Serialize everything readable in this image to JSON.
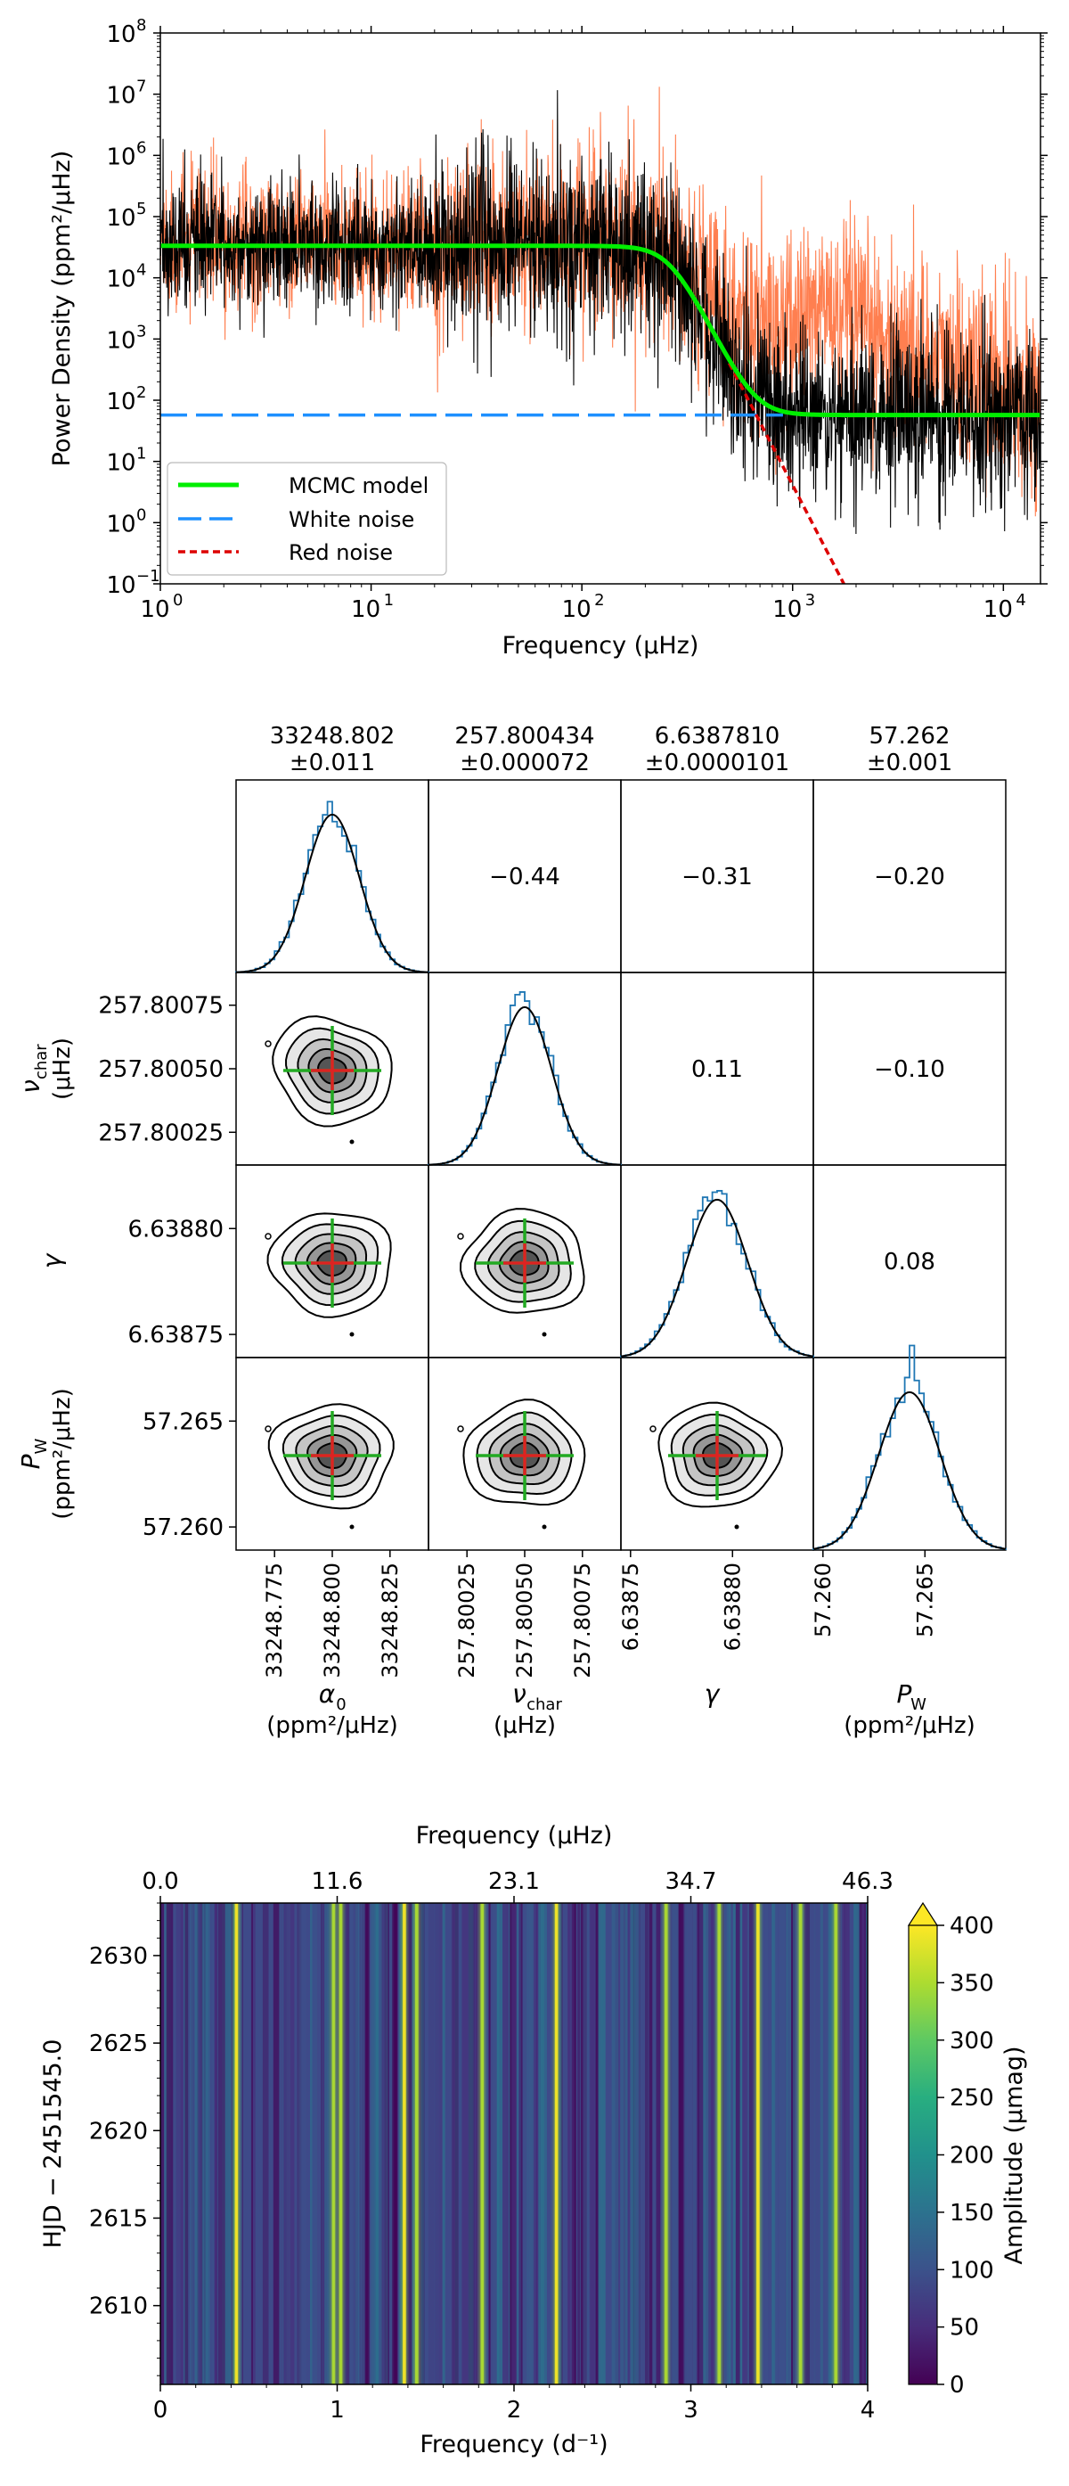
{
  "chart_data": [
    {
      "type": "line",
      "xlabel": "Frequency (μHz)",
      "ylabel": "Power Density (ppm²/μHz)",
      "xscale": "log",
      "yscale": "log",
      "xlim": [
        1,
        15000
      ],
      "ylim": [
        0.1,
        100000000
      ],
      "x_ticks": [
        {
          "value": 1,
          "base": "10",
          "exp": "0"
        },
        {
          "value": 10,
          "base": "10",
          "exp": "1"
        },
        {
          "value": 100,
          "base": "10",
          "exp": "2"
        },
        {
          "value": 1000,
          "base": "10",
          "exp": "3"
        },
        {
          "value": 10000,
          "base": "10",
          "exp": "4"
        }
      ],
      "y_ticks": [
        {
          "value": 0.1,
          "base": "10",
          "exp": "−1"
        },
        {
          "value": 1,
          "base": "10",
          "exp": "0"
        },
        {
          "value": 10,
          "base": "10",
          "exp": "1"
        },
        {
          "value": 100,
          "base": "10",
          "exp": "2"
        },
        {
          "value": 1000,
          "base": "10",
          "exp": "3"
        },
        {
          "value": 10000,
          "base": "10",
          "exp": "4"
        },
        {
          "value": 100000,
          "base": "10",
          "exp": "5"
        },
        {
          "value": 1000000,
          "base": "10",
          "exp": "6"
        },
        {
          "value": 10000000,
          "base": "10",
          "exp": "7"
        },
        {
          "value": 100000000,
          "base": "10",
          "exp": "8"
        }
      ],
      "legend_position": "lower-left",
      "series": [
        {
          "name": "MCMC model",
          "color": "#00ee00",
          "style": "solid",
          "model": {
            "alpha0": 33248.8,
            "nu_char": 257.8,
            "gamma": 6.639,
            "white": 57.262
          }
        },
        {
          "name": "White noise",
          "color": "#1e90ff",
          "style": "dashed",
          "value": 57.262,
          "x_end": 900
        },
        {
          "name": "Red noise",
          "color": "#dd0000",
          "style": "dotted",
          "x_start": 500,
          "x_end": 2000
        },
        {
          "name": "",
          "color": "#ff7f50",
          "style": "noisy",
          "description_level": "pre-whitened spectrum"
        },
        {
          "name": "",
          "color": "#000000",
          "style": "noisy"
        }
      ]
    },
    {
      "type": "corner",
      "parameters": [
        {
          "id": "alpha0",
          "sym": "α",
          "sub": "0",
          "unit": "(ppm²/μHz)",
          "mean": "33248.802",
          "err": "±0.011",
          "ticks": [
            "33248.775",
            "33248.800",
            "33248.825"
          ]
        },
        {
          "id": "nu_char",
          "sym": "ν",
          "sub": "char",
          "unit": "(μHz)",
          "mean": "257.800434",
          "err": "±0.000072",
          "ticks": [
            "257.80025",
            "257.80050",
            "257.80075"
          ]
        },
        {
          "id": "gamma",
          "sym": "γ",
          "sub": "",
          "unit": "",
          "mean": "6.6387810",
          "err": "±0.0000101",
          "ticks": [
            "6.63875",
            "6.63880"
          ]
        },
        {
          "id": "pw",
          "sym": "P",
          "sub": "W",
          "unit": "(ppm²/μHz)",
          "mean": "57.262",
          "err": "±0.001",
          "ticks": [
            "57.260",
            "57.265"
          ]
        }
      ],
      "row_y_ticks": [
        [
          "257.80075",
          "257.80050",
          "257.80025"
        ],
        [
          "6.63880",
          "6.63875"
        ],
        [
          "57.265",
          "57.260"
        ]
      ],
      "correlations": [
        {
          "row": 0,
          "col": 1,
          "value": "−0.44"
        },
        {
          "row": 0,
          "col": 2,
          "value": "−0.31"
        },
        {
          "row": 0,
          "col": 3,
          "value": "−0.20"
        },
        {
          "row": 1,
          "col": 2,
          "value": "0.11"
        },
        {
          "row": 1,
          "col": 3,
          "value": "−0.10"
        },
        {
          "row": 2,
          "col": 3,
          "value": "0.08"
        }
      ],
      "hist_color": "#1f77b4",
      "fit_color": "#000000",
      "cross_colors": {
        "vertical": "#22aa22",
        "horizontal": "#dd2222"
      }
    },
    {
      "type": "heatmap",
      "xlabel": "Frequency (d⁻¹)",
      "ylabel": "HJD − 2451545.0",
      "top_xlabel": "Frequency (μHz)",
      "x_ticks": [
        "0",
        "1",
        "2",
        "3",
        "4"
      ],
      "top_x_ticks": [
        "0.0",
        "11.6",
        "23.1",
        "34.7",
        "46.3"
      ],
      "y_ticks": [
        "2630",
        "2625",
        "2620",
        "2615",
        "2610"
      ],
      "xlim": [
        0,
        4
      ],
      "ylim": [
        2605.5,
        2633
      ],
      "colorbar": {
        "label": "Amplitude (μmag)",
        "ticks": [
          "400",
          "350",
          "300",
          "250",
          "200",
          "150",
          "100",
          "50",
          "0"
        ],
        "range": [
          0,
          400
        ],
        "colormap": "viridis"
      },
      "peak_frequencies": [
        0.43,
        0.98,
        1.02,
        1.38,
        1.45,
        1.82,
        2.24,
        2.86,
        3.16,
        3.38,
        3.62,
        3.82
      ]
    }
  ]
}
